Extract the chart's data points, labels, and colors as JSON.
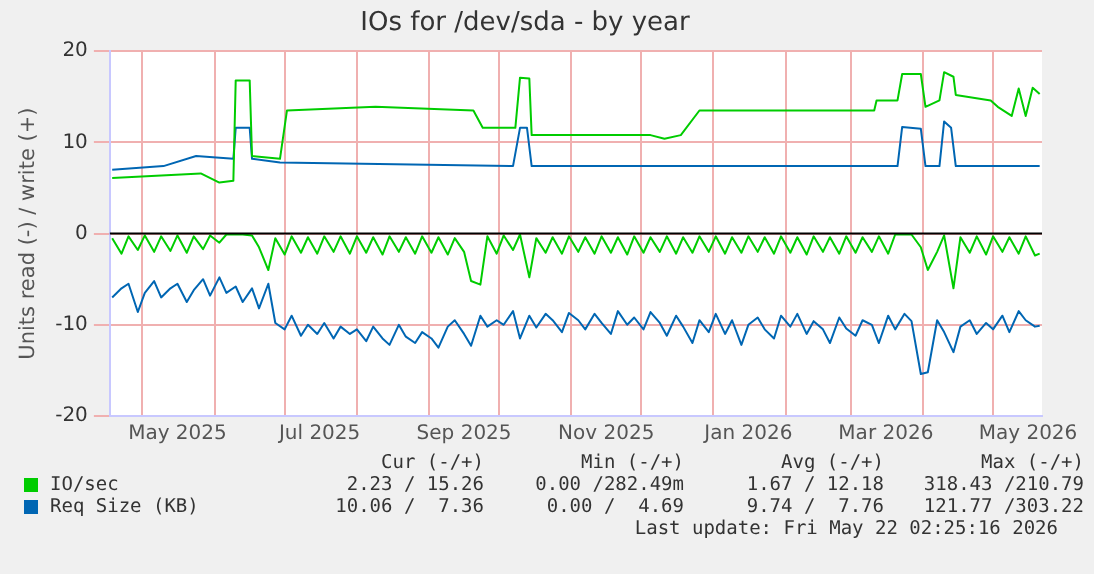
{
  "chart_data": {
    "type": "line",
    "title": "IOs for /dev/sda - by year",
    "ylabel": "Units read (-) / write (+)",
    "xlim": [
      "2025-04-17",
      "2026-05-22"
    ],
    "xticks": [
      {
        "value": "2025-05-01",
        "label": null
      },
      {
        "value": "2025-05-16",
        "label": "May 2025"
      },
      {
        "value": "2025-06-01",
        "label": null
      },
      {
        "value": "2025-07-01",
        "label": null
      },
      {
        "value": "2025-07-16",
        "label": "Jul 2025"
      },
      {
        "value": "2025-08-01",
        "label": null
      },
      {
        "value": "2025-09-01",
        "label": null
      },
      {
        "value": "2025-09-16",
        "label": "Sep 2025"
      },
      {
        "value": "2025-10-01",
        "label": null
      },
      {
        "value": "2025-11-01",
        "label": null
      },
      {
        "value": "2025-11-16",
        "label": "Nov 2025"
      },
      {
        "value": "2025-12-01",
        "label": null
      },
      {
        "value": "2026-01-01",
        "label": null
      },
      {
        "value": "2026-01-16",
        "label": "Jan 2026"
      },
      {
        "value": "2026-02-01",
        "label": null
      },
      {
        "value": "2026-03-01",
        "label": null
      },
      {
        "value": "2026-03-16",
        "label": "Mar 2026"
      },
      {
        "value": "2026-04-01",
        "label": null
      },
      {
        "value": "2026-05-01",
        "label": null
      },
      {
        "value": "2026-05-16",
        "label": "May 2026"
      }
    ],
    "ylim": [
      -20,
      20
    ],
    "yticks": [
      -20,
      -10,
      0,
      10,
      20
    ],
    "grid": true,
    "legend": "bottom",
    "marker": "none",
    "line_style": "solid",
    "ref_lines": [
      {
        "axis": "y",
        "value": 0,
        "color": "#000000"
      }
    ],
    "x": [
      "2025-04-18",
      "2025-04-22",
      "2025-04-25",
      "2025-04-29",
      "2025-05-02",
      "2025-05-06",
      "2025-05-09",
      "2025-05-13",
      "2025-05-16",
      "2025-05-20",
      "2025-05-23",
      "2025-05-27",
      "2025-05-30",
      "2025-06-03",
      "2025-06-06",
      "2025-06-10",
      "2025-06-13",
      "2025-06-17",
      "2025-06-20",
      "2025-06-24",
      "2025-06-27",
      "2025-07-01",
      "2025-07-04",
      "2025-07-08",
      "2025-07-11",
      "2025-07-15",
      "2025-07-18",
      "2025-07-22",
      "2025-07-25",
      "2025-07-29",
      "2025-08-01",
      "2025-08-05",
      "2025-08-08",
      "2025-08-12",
      "2025-08-15",
      "2025-08-19",
      "2025-08-22",
      "2025-08-26",
      "2025-08-29",
      "2025-09-02",
      "2025-09-05",
      "2025-09-09",
      "2025-09-12",
      "2025-09-16",
      "2025-09-19",
      "2025-09-23",
      "2025-09-26",
      "2025-09-30",
      "2025-10-03",
      "2025-10-07",
      "2025-10-10",
      "2025-10-14",
      "2025-10-17",
      "2025-10-21",
      "2025-10-24",
      "2025-10-28",
      "2025-10-31",
      "2025-11-04",
      "2025-11-07",
      "2025-11-11",
      "2025-11-14",
      "2025-11-18",
      "2025-11-21",
      "2025-11-25",
      "2025-11-28",
      "2025-12-02",
      "2025-12-05",
      "2025-12-09",
      "2025-12-12",
      "2025-12-16",
      "2025-12-19",
      "2025-12-23",
      "2025-12-26",
      "2025-12-30",
      "2026-01-02",
      "2026-01-06",
      "2026-01-09",
      "2026-01-13",
      "2026-01-16",
      "2026-01-20",
      "2026-01-23",
      "2026-01-27",
      "2026-01-30",
      "2026-02-03",
      "2026-02-06",
      "2026-02-10",
      "2026-02-13",
      "2026-02-17",
      "2026-02-20",
      "2026-02-24",
      "2026-02-27",
      "2026-03-03",
      "2026-03-06",
      "2026-03-10",
      "2026-03-13",
      "2026-03-17",
      "2026-03-20",
      "2026-03-24",
      "2026-03-27",
      "2026-03-31",
      "2026-04-03",
      "2026-04-07",
      "2026-04-10",
      "2026-04-14",
      "2026-04-17",
      "2026-04-21",
      "2026-04-24",
      "2026-04-28",
      "2026-05-01",
      "2026-05-05",
      "2026-05-08",
      "2026-05-12",
      "2026-05-15",
      "2026-05-19",
      "2026-05-21"
    ],
    "series": [
      {
        "name": "IO/sec",
        "color": "#00cc00",
        "x": [
          "2025-04-18",
          "2025-05-26",
          "2025-06-03",
          "2025-06-09",
          "2025-06-10",
          "2025-06-16",
          "2025-06-17",
          "2025-06-29",
          "2025-07-02",
          "2025-08-09",
          "2025-09-20",
          "2025-09-24",
          "2025-10-08",
          "2025-10-10",
          "2025-10-14",
          "2025-10-15",
          "2025-12-05",
          "2025-12-11",
          "2025-12-18",
          "2025-12-26",
          "2026-03-11",
          "2026-03-12",
          "2026-03-21",
          "2026-03-23",
          "2026-03-31",
          "2026-04-02",
          "2026-04-08",
          "2026-04-10",
          "2026-04-14",
          "2026-04-15",
          "2026-04-30",
          "2026-05-03",
          "2026-05-09",
          "2026-05-12",
          "2026-05-15",
          "2026-05-18",
          "2026-05-21"
        ],
        "values": [
          6.1,
          6.6,
          5.6,
          5.8,
          16.8,
          16.8,
          8.5,
          8.2,
          13.5,
          13.9,
          13.5,
          11.6,
          11.6,
          17.1,
          17.0,
          10.8,
          10.8,
          10.4,
          10.8,
          13.5,
          13.5,
          14.6,
          14.6,
          17.5,
          17.5,
          13.9,
          14.6,
          17.7,
          17.2,
          15.2,
          14.6,
          13.9,
          12.9,
          15.9,
          12.9,
          16.0,
          15.3
        ]
      },
      {
        "name": "Req Size (KB)",
        "color": "#0066b3",
        "x": [
          "2025-04-18",
          "2025-05-10",
          "2025-05-24",
          "2025-06-09",
          "2025-06-10",
          "2025-06-16",
          "2025-06-17",
          "2025-06-29",
          "2025-10-07",
          "2025-10-10",
          "2025-10-13",
          "2025-10-15",
          "2026-03-21",
          "2026-03-23",
          "2026-03-31",
          "2026-04-02",
          "2026-04-08",
          "2026-04-10",
          "2026-04-13",
          "2026-04-15",
          "2026-05-21"
        ],
        "values": [
          7.0,
          7.4,
          8.5,
          8.2,
          11.6,
          11.6,
          8.2,
          7.8,
          7.4,
          11.6,
          11.6,
          7.4,
          7.4,
          11.7,
          11.5,
          7.4,
          7.4,
          12.3,
          11.6,
          7.4,
          7.4
        ]
      },
      {
        "color": "#00cc00",
        "values": [
          -0.5,
          -2.2,
          -0.3,
          -1.8,
          -0.2,
          -2.0,
          -0.3,
          -1.9,
          -0.2,
          -2.1,
          -0.3,
          -1.7,
          -0.2,
          -1.0,
          -0.1,
          -0.1,
          -0.1,
          -0.2,
          -1.5,
          -4.0,
          -0.5,
          -2.3,
          -0.3,
          -2.1,
          -0.4,
          -2.2,
          -0.3,
          -2.0,
          -0.3,
          -2.2,
          -0.3,
          -2.1,
          -0.4,
          -2.3,
          -0.3,
          -2.0,
          -0.4,
          -2.2,
          -0.3,
          -2.1,
          -0.4,
          -2.3,
          -0.5,
          -2.0,
          -5.2,
          -5.6,
          -0.3,
          -2.2,
          -0.2,
          -1.8,
          -0.1,
          -4.8,
          -0.5,
          -2.1,
          -0.4,
          -2.2,
          -0.3,
          -2.0,
          -0.4,
          -2.2,
          -0.3,
          -2.1,
          -0.4,
          -2.3,
          -0.3,
          -2.1,
          -0.4,
          -2.0,
          -0.3,
          -2.2,
          -0.4,
          -2.1,
          -0.3,
          -2.0,
          -0.3,
          -2.2,
          -0.4,
          -2.1,
          -0.3,
          -2.0,
          -0.4,
          -2.2,
          -0.3,
          -2.1,
          -0.4,
          -2.3,
          -0.3,
          -2.0,
          -0.4,
          -2.2,
          -0.3,
          -2.1,
          -0.4,
          -2.0,
          -0.3,
          -2.2,
          -0.1,
          -0.1,
          -0.1,
          -1.5,
          -4.0,
          -2.0,
          -0.2,
          -6.0,
          -0.4,
          -2.1,
          -0.3,
          -2.3,
          -0.3,
          -2.0,
          -0.4,
          -2.2,
          -0.3,
          -2.4,
          -2.2
        ]
      },
      {
        "color": "#0066b3",
        "values": [
          -7.0,
          -6.0,
          -5.5,
          -8.6,
          -6.5,
          -5.2,
          -7.0,
          -6.0,
          -5.5,
          -7.5,
          -6.2,
          -5.0,
          -6.8,
          -4.8,
          -6.5,
          -5.8,
          -7.5,
          -6.0,
          -8.2,
          -5.5,
          -9.8,
          -10.5,
          -9.0,
          -11.2,
          -10.0,
          -11.0,
          -9.8,
          -11.5,
          -10.2,
          -11.0,
          -10.5,
          -11.8,
          -10.2,
          -11.5,
          -12.2,
          -10.0,
          -11.3,
          -12.0,
          -10.8,
          -11.5,
          -12.5,
          -10.2,
          -9.5,
          -11.0,
          -12.3,
          -9.0,
          -10.2,
          -9.5,
          -10.0,
          -8.5,
          -11.5,
          -9.0,
          -10.3,
          -8.8,
          -9.5,
          -10.8,
          -8.7,
          -9.5,
          -10.5,
          -8.8,
          -9.8,
          -11.0,
          -8.5,
          -10.0,
          -9.2,
          -10.5,
          -8.6,
          -9.8,
          -11.2,
          -9.0,
          -10.2,
          -12.0,
          -9.5,
          -10.8,
          -8.8,
          -11.0,
          -9.5,
          -12.2,
          -10.0,
          -9.2,
          -10.5,
          -11.5,
          -9.0,
          -10.2,
          -8.8,
          -11.0,
          -9.6,
          -10.5,
          -12.0,
          -9.2,
          -10.4,
          -11.2,
          -9.5,
          -10.0,
          -12.0,
          -9.0,
          -10.5,
          -8.8,
          -9.6,
          -15.4,
          -15.2,
          -9.5,
          -10.8,
          -13.0,
          -10.2,
          -9.5,
          -11.0,
          -9.8,
          -10.5,
          -9.0,
          -10.8,
          -8.5,
          -9.5,
          -10.2,
          -10.1
        ]
      }
    ],
    "annotations": [
      "Cur (-/+)",
      "Min (-/+)",
      "Avg (-/+)",
      "Max (-/+)",
      "2.23 / 15.26",
      "0.00 /282.49m",
      "1.67 / 12.18",
      "318.43 /210.79",
      "10.06 /  7.36",
      "0.00 /  4.69",
      "9.74 /  7.76",
      "121.77 /303.22",
      "Last update: Fri May 22 02:25:16 2026"
    ]
  }
}
